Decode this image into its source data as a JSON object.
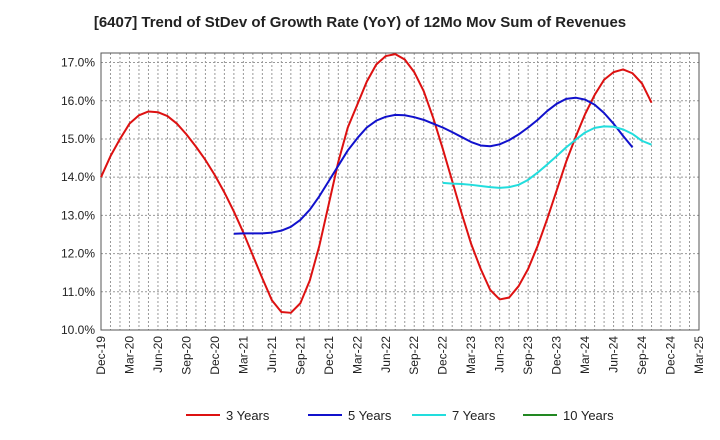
{
  "chart_data": {
    "type": "line",
    "title": "[6407]  Trend of StDev of Growth Rate (YoY) of 12Mo Mov Sum of Revenues",
    "xlabel": "",
    "ylabel": "",
    "ylim": [
      10.0,
      17.25
    ],
    "yticks": [
      10.0,
      11.0,
      12.0,
      13.0,
      14.0,
      15.0,
      16.0,
      17.0
    ],
    "ytick_labels": [
      "10.0%",
      "11.0%",
      "12.0%",
      "13.0%",
      "14.0%",
      "15.0%",
      "16.0%",
      "17.0%"
    ],
    "x_tick_labels": [
      "Dec-19",
      "Mar-20",
      "Jun-20",
      "Sep-20",
      "Dec-20",
      "Mar-21",
      "Jun-21",
      "Sep-21",
      "Dec-21",
      "Mar-22",
      "Jun-22",
      "Sep-22",
      "Dec-22",
      "Mar-23",
      "Jun-23",
      "Sep-23",
      "Dec-23",
      "Mar-24",
      "Jun-24",
      "Sep-24",
      "Dec-24",
      "Mar-25"
    ],
    "grid": true,
    "legend_position": "bottom",
    "series": [
      {
        "name": "3 Years",
        "color": "#dd1111",
        "start_index": 0,
        "values": [
          14.0,
          14.55,
          15.0,
          15.4,
          15.62,
          15.72,
          15.7,
          15.6,
          15.4,
          15.12,
          14.8,
          14.45,
          14.05,
          13.6,
          13.1,
          12.55,
          11.95,
          11.35,
          10.78,
          10.47,
          10.45,
          10.7,
          11.3,
          12.2,
          13.3,
          14.4,
          15.3,
          15.9,
          16.5,
          16.95,
          17.17,
          17.22,
          17.08,
          16.75,
          16.25,
          15.55,
          14.75,
          13.9,
          13.05,
          12.25,
          11.6,
          11.05,
          10.8,
          10.85,
          11.15,
          11.6,
          12.2,
          12.9,
          13.65,
          14.4,
          15.05,
          15.65,
          16.15,
          16.55,
          16.75,
          16.82,
          16.72,
          16.45,
          15.95
        ]
      },
      {
        "name": "5 Years",
        "color": "#1111cc",
        "start_index": 14,
        "values": [
          12.52,
          12.53,
          12.53,
          12.53,
          12.55,
          12.6,
          12.7,
          12.88,
          13.15,
          13.5,
          13.9,
          14.3,
          14.7,
          15.02,
          15.3,
          15.48,
          15.58,
          15.63,
          15.62,
          15.57,
          15.5,
          15.4,
          15.3,
          15.18,
          15.05,
          14.92,
          14.83,
          14.81,
          14.86,
          14.97,
          15.12,
          15.3,
          15.5,
          15.73,
          15.92,
          16.05,
          16.08,
          16.03,
          15.9,
          15.68,
          15.4,
          15.08,
          14.78
        ]
      },
      {
        "name": "7 Years",
        "color": "#22dddd",
        "start_index": 36,
        "values": [
          13.85,
          13.83,
          13.82,
          13.8,
          13.77,
          13.74,
          13.72,
          13.74,
          13.8,
          13.93,
          14.12,
          14.33,
          14.55,
          14.78,
          14.98,
          15.17,
          15.29,
          15.33,
          15.32,
          15.25,
          15.13,
          14.95,
          14.85
        ]
      },
      {
        "name": "10 Years",
        "color": "#228822",
        "start_index": 0,
        "values": []
      }
    ]
  }
}
